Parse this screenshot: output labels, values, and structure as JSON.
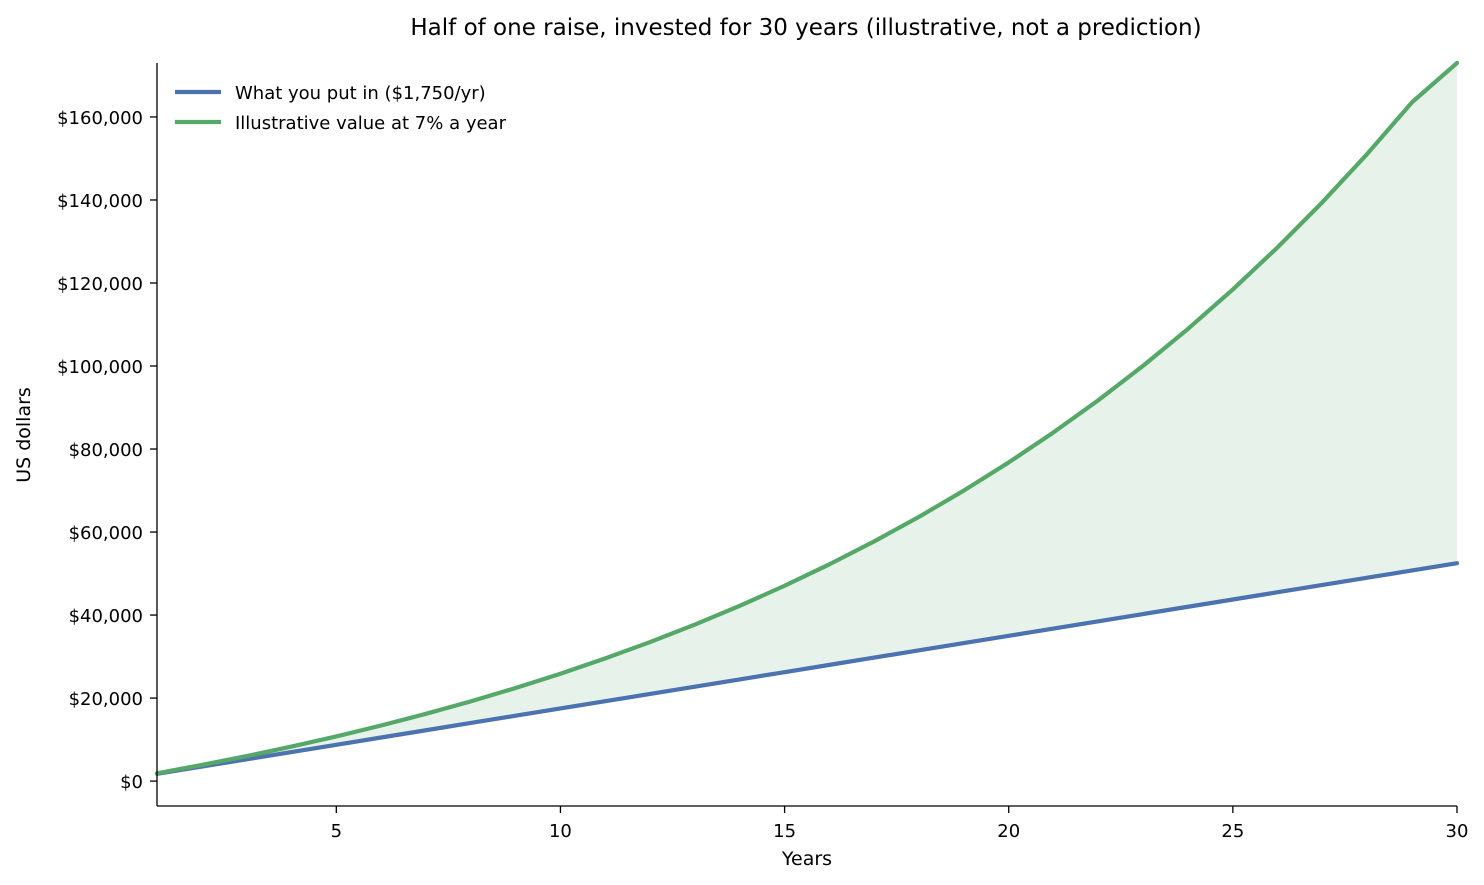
{
  "chart_data": {
    "type": "line",
    "title": "Half of one raise, invested for 30 years (illustrative, not a prediction)",
    "xlabel": "Years",
    "ylabel": "US dollars",
    "xlim": [
      1,
      30
    ],
    "ylim": [
      -6000,
      173000
    ],
    "x_ticks": [
      5,
      10,
      15,
      20,
      25,
      30
    ],
    "y_ticks": [
      0,
      20000,
      40000,
      60000,
      80000,
      100000,
      120000,
      140000,
      160000
    ],
    "y_tick_labels": [
      "$0",
      "$20,000",
      "$40,000",
      "$60,000",
      "$80,000",
      "$100,000",
      "$120,000",
      "$140,000",
      "$160,000"
    ],
    "grid": false,
    "legend_position": "top-left",
    "fill_between_series": true,
    "x": [
      1,
      2,
      3,
      4,
      5,
      6,
      7,
      8,
      9,
      10,
      11,
      12,
      13,
      14,
      15,
      16,
      17,
      18,
      19,
      20,
      21,
      22,
      23,
      24,
      25,
      26,
      27,
      28,
      29,
      30
    ],
    "series": [
      {
        "name": "What you put in ($1,750/yr)",
        "color": "#4c72b0",
        "values": [
          1750,
          3500,
          5250,
          7000,
          8750,
          10500,
          12250,
          14000,
          15750,
          17500,
          19250,
          21000,
          22750,
          24500,
          26250,
          28000,
          29750,
          31500,
          33250,
          35000,
          36750,
          38500,
          40250,
          42000,
          43750,
          45500,
          47250,
          49000,
          50750,
          52500
        ]
      },
      {
        "name": "Illustrative value at 7% a year",
        "color": "#55a868",
        "values": [
          1873,
          3877,
          6020,
          8314,
          10769,
          13395,
          16205,
          19212,
          22430,
          25873,
          29557,
          33499,
          37717,
          42230,
          47059,
          52226,
          57755,
          63671,
          70001,
          76774,
          84021,
          91775,
          100072,
          108950,
          118449,
          128614,
          139490,
          151127,
          163579,
          176902
        ]
      }
    ]
  }
}
